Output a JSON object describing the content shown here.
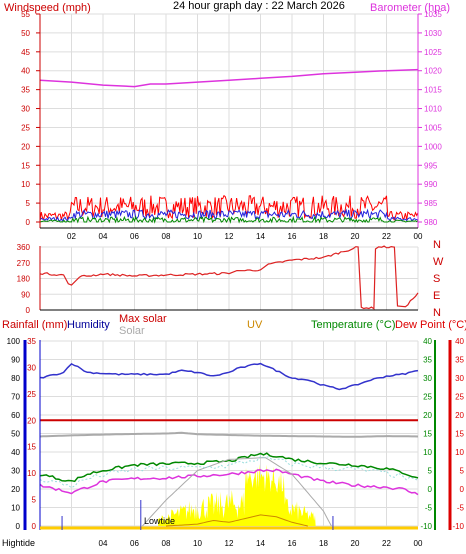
{
  "title": "24 hour graph day : 22 March 2026",
  "colors": {
    "axis_red": "#cc0000",
    "baro": "#dd33dd",
    "wind_red": "#ff0000",
    "wind_blue": "#2222dd",
    "wind_green": "#008800",
    "dir_red": "#dd2222",
    "humidity": "#3333cc",
    "maxsolar": "#cc0000",
    "solar": "#aaaaaa",
    "uv": "#cc8800",
    "temp": "#008800",
    "dew": "#dd0000",
    "feels": "#99dddd",
    "solar_fill": "#ffff00",
    "grid": "#dddddd",
    "tide": "#3333cc"
  },
  "panel1": {
    "left_label": "Windspeed (mph)",
    "right_label": "Barometer (hpa)",
    "left_ticks": [
      "0",
      "5",
      "10",
      "15",
      "20",
      "25",
      "30",
      "35",
      "40",
      "45",
      "50",
      "55"
    ],
    "right_ticks": [
      "980",
      "985",
      "990",
      "995",
      "1000",
      "1005",
      "1010",
      "1015",
      "1020",
      "1025",
      "1030",
      "1035"
    ]
  },
  "x_ticks": [
    "02",
    "04",
    "06",
    "08",
    "10",
    "12",
    "14",
    "16",
    "18",
    "20",
    "22",
    "00"
  ],
  "panel2": {
    "left_ticks": [
      "0",
      "90",
      "180",
      "270",
      "360"
    ],
    "compass": [
      "N",
      "W",
      "S",
      "E",
      "N"
    ]
  },
  "panel3": {
    "labels": {
      "rain": "Rainfall (mm)",
      "humidity": "Humidity",
      "maxsolar": "Max solar",
      "solar": "Solar",
      "uv": "UV",
      "temp": "Temperature (°C)",
      "dew": "Dew Point (°C)"
    },
    "humidity_ticks": [
      "0",
      "10",
      "20",
      "30",
      "40",
      "50",
      "60",
      "70",
      "80",
      "90",
      "100"
    ],
    "rain_ticks": [
      "0",
      "5",
      "10",
      "15",
      "20",
      "25",
      "30",
      "35"
    ],
    "temp_ticks": [
      "-10",
      "-5",
      "0",
      "5",
      "10",
      "15",
      "20",
      "25",
      "30",
      "35",
      "40"
    ],
    "dew_ticks": [
      "-10",
      "-5",
      "0",
      "5",
      "10",
      "15",
      "20",
      "25",
      "30",
      "35",
      "40"
    ],
    "hightide_label": "Hightide",
    "lowtide_label": "Lowtide",
    "x_ticks": [
      "02",
      "04",
      "06",
      "08",
      "10",
      "12",
      "14",
      "16",
      "18",
      "20",
      "22",
      "00"
    ]
  },
  "chart_data": [
    {
      "type": "line",
      "name": "wind-and-pressure",
      "x_unit": "hours",
      "x_range": [
        0,
        24
      ],
      "left_ylim": [
        0,
        55
      ],
      "right_ylim": [
        980,
        1035
      ],
      "series": [
        {
          "name": "Barometer (hpa)",
          "axis": "right",
          "x": [
            0,
            2,
            4,
            6,
            7,
            8,
            10,
            12,
            14,
            16,
            18,
            20,
            22,
            24
          ],
          "y": [
            1017.5,
            1017,
            1016.2,
            1015.8,
            1016.5,
            1016.5,
            1017,
            1017.5,
            1018,
            1018.5,
            1019.2,
            1019.6,
            1020,
            1020.3
          ]
        },
        {
          "name": "Wind gust",
          "axis": "left",
          "base": 4,
          "amp": 3
        },
        {
          "name": "Wind average",
          "axis": "left",
          "base": 2,
          "amp": 1.2
        },
        {
          "name": "Wind lull",
          "axis": "left",
          "base": 0.5,
          "amp": 0.8
        }
      ]
    },
    {
      "type": "line",
      "name": "wind-direction",
      "x_unit": "hours",
      "x_range": [
        0,
        24
      ],
      "ylim": [
        0,
        360
      ],
      "series": [
        {
          "name": "Direction (degrees)",
          "x": [
            0,
            1.5,
            1.8,
            2,
            2.5,
            4,
            6,
            8,
            10,
            12,
            12.5,
            13,
            14,
            14.5,
            16,
            18,
            20.2,
            20.4,
            21.2,
            21.3,
            21.5,
            21.7,
            22.3,
            22.5,
            22.7,
            23.2,
            24
          ],
          "y": [
            210,
            200,
            150,
            140,
            190,
            205,
            195,
            200,
            205,
            210,
            225,
            225,
            230,
            260,
            285,
            300,
            360,
            15,
            10,
            350,
            360,
            360,
            360,
            360,
            20,
            20,
            95
          ]
        }
      ]
    },
    {
      "type": "line",
      "name": "temperature-humidity-solar",
      "x_unit": "hours",
      "x_range": [
        0,
        24
      ],
      "ylim_temp": [
        -10,
        40
      ],
      "ylim_humidity": [
        0,
        100
      ],
      "ylim_rain": [
        0,
        35
      ],
      "series": [
        {
          "name": "Humidity",
          "axis": "humidity",
          "x": [
            0,
            1.5,
            2,
            3,
            5,
            8,
            9,
            10,
            11,
            12,
            12.5,
            13,
            14,
            15,
            16,
            17,
            18,
            19,
            20,
            21,
            22,
            23,
            24
          ],
          "y": [
            80,
            83,
            88,
            83,
            82,
            82,
            84,
            83,
            81,
            83,
            85,
            86,
            88,
            84,
            80,
            79,
            76,
            74,
            76,
            79,
            81,
            82,
            84
          ]
        },
        {
          "name": "Rainfall",
          "axis": "rain",
          "x": [
            0,
            24
          ],
          "y": [
            20,
            20
          ]
        },
        {
          "name": "Solar",
          "axis": "temp",
          "x": [
            0,
            2,
            4,
            5,
            8,
            9,
            10,
            12,
            14,
            16,
            18,
            20,
            22,
            24
          ],
          "y": [
            14.2,
            14.5,
            14.7,
            14.8,
            15,
            15.2,
            14.8,
            14.6,
            14.4,
            14.3,
            14.2,
            14.1,
            14.3,
            14.2
          ]
        },
        {
          "name": "Temperature",
          "axis": "temp",
          "x": [
            0,
            1,
            2,
            3,
            4,
            6,
            8,
            10,
            12,
            13,
            14,
            15,
            16,
            18,
            20,
            22,
            23,
            24
          ],
          "y": [
            4,
            3,
            2,
            4,
            5,
            6.5,
            6.8,
            7,
            7.5,
            8.5,
            9.5,
            9,
            8,
            7,
            6.5,
            5.5,
            4.5,
            3
          ]
        },
        {
          "name": "Dew Point",
          "axis": "temp",
          "x": [
            0,
            1,
            2,
            3,
            4,
            6,
            8,
            10,
            12,
            14,
            15,
            16,
            18,
            20,
            22,
            23,
            24
          ],
          "y": [
            1,
            0,
            -1,
            0.5,
            2,
            2.8,
            3,
            3.5,
            4,
            5,
            5,
            4,
            2,
            1,
            0.5,
            0,
            -1.5
          ]
        },
        {
          "name": "Max solar",
          "axis": "temp",
          "x": [
            6.5,
            8,
            10,
            12,
            14.3,
            16,
            18,
            18.5
          ],
          "y": [
            -10,
            -3,
            5,
            8,
            8.5,
            4,
            -6,
            -10
          ]
        },
        {
          "name": "UV",
          "axis": "temp",
          "x": [
            8,
            10,
            11,
            12,
            13,
            14,
            15,
            16,
            17
          ],
          "y": [
            -10,
            -9.5,
            -8.5,
            -9,
            -8,
            -7,
            -7.5,
            -9,
            -10
          ]
        }
      ]
    }
  ]
}
